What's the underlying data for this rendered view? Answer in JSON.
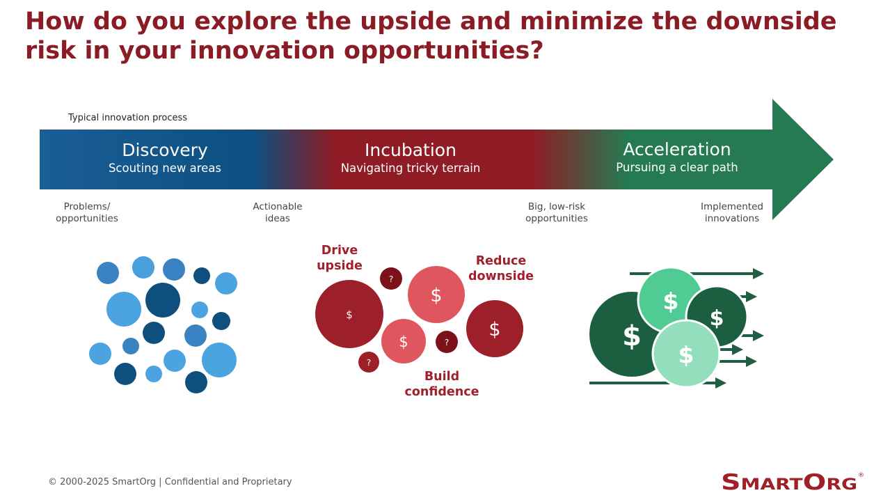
{
  "title": "How do you explore the upside and minimize the downside risk in your innovation opportunities?",
  "process_label": "Typical innovation process",
  "stages": [
    {
      "name": "Discovery",
      "subtitle": "Scouting new areas"
    },
    {
      "name": "Incubation",
      "subtitle": "Navigating tricky terrain"
    },
    {
      "name": "Acceleration",
      "subtitle": "Pursuing a clear path"
    }
  ],
  "milestones": [
    {
      "line1": "Problems/",
      "line2": "opportunities"
    },
    {
      "line1": "Actionable",
      "line2": "ideas"
    },
    {
      "line1": "Big, low-risk",
      "line2": "opportunities"
    },
    {
      "line1": "Implemented",
      "line2": "innovations"
    }
  ],
  "incubation_labels": {
    "drive_1": "Drive",
    "drive_2": "upside",
    "reduce_1": "Reduce",
    "reduce_2": "downside",
    "build_1": "Build",
    "build_2": "confidence"
  },
  "symbols": {
    "dollar": "$",
    "question": "?"
  },
  "footer": "© 2000-2025 SmartOrg | Confidential and Proprietary",
  "logo_text": "SmartOrg",
  "logo_mark": "®",
  "colors": {
    "title": "#8b1c25",
    "blue": "#0e5a8f",
    "red": "#8f1c25",
    "green": "#257a52"
  }
}
